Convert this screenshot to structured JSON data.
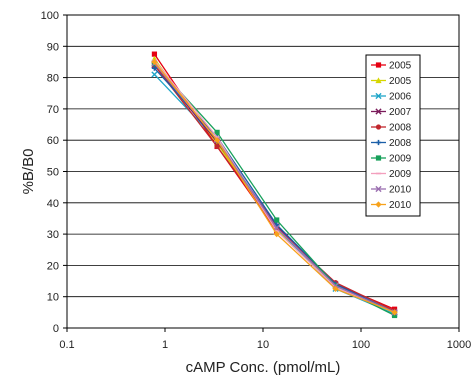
{
  "chart_data": {
    "type": "line",
    "title": "",
    "xlabel": "cAMP Conc. (pmol/mL)",
    "ylabel": "%B/B0",
    "x_scale": "log",
    "xlim": [
      0.1,
      1000
    ],
    "ylim": [
      0,
      100
    ],
    "x_ticks": [
      "0.1",
      "1",
      "10",
      "100",
      "1000"
    ],
    "y_ticks": [
      "0",
      "10",
      "20",
      "30",
      "40",
      "50",
      "60",
      "70",
      "80",
      "90",
      "100"
    ],
    "grid": "horizontal",
    "legend_position": "right",
    "x": [
      0.78,
      3.4,
      13.8,
      55,
      220
    ],
    "series": [
      {
        "name": "2005",
        "color": "#e60012",
        "marker": "square",
        "values": [
          87.5,
          58,
          31,
          14,
          6
        ]
      },
      {
        "name": "2005",
        "color": "#d6d600",
        "marker": "triangle",
        "values": [
          86,
          59,
          31.5,
          13.5,
          5
        ]
      },
      {
        "name": "2006",
        "color": "#1fa6c9",
        "marker": "cross",
        "values": [
          81,
          60,
          32,
          12.5,
          4.5
        ]
      },
      {
        "name": "2007",
        "color": "#7a1a5a",
        "marker": "cross",
        "values": [
          84,
          59.5,
          32.5,
          14,
          5
        ]
      },
      {
        "name": "2008",
        "color": "#c1272d",
        "marker": "circle",
        "values": [
          84,
          58,
          32,
          14.5,
          5.5
        ]
      },
      {
        "name": "2008",
        "color": "#1b5fa8",
        "marker": "plus",
        "values": [
          83,
          61,
          33,
          14,
          5
        ]
      },
      {
        "name": "2009",
        "color": "#17a05a",
        "marker": "square",
        "values": [
          84.5,
          62.5,
          34.5,
          13.5,
          4
        ]
      },
      {
        "name": "2009",
        "color": "#f39fbd",
        "marker": "line",
        "values": [
          85.5,
          61,
          31,
          13,
          5
        ]
      },
      {
        "name": "2010",
        "color": "#9b6fb0",
        "marker": "cross",
        "values": [
          84.5,
          60,
          32,
          13.5,
          5
        ]
      },
      {
        "name": "2010",
        "color": "#f7a21b",
        "marker": "diamond",
        "values": [
          85,
          60,
          30,
          12.5,
          5
        ]
      }
    ]
  }
}
